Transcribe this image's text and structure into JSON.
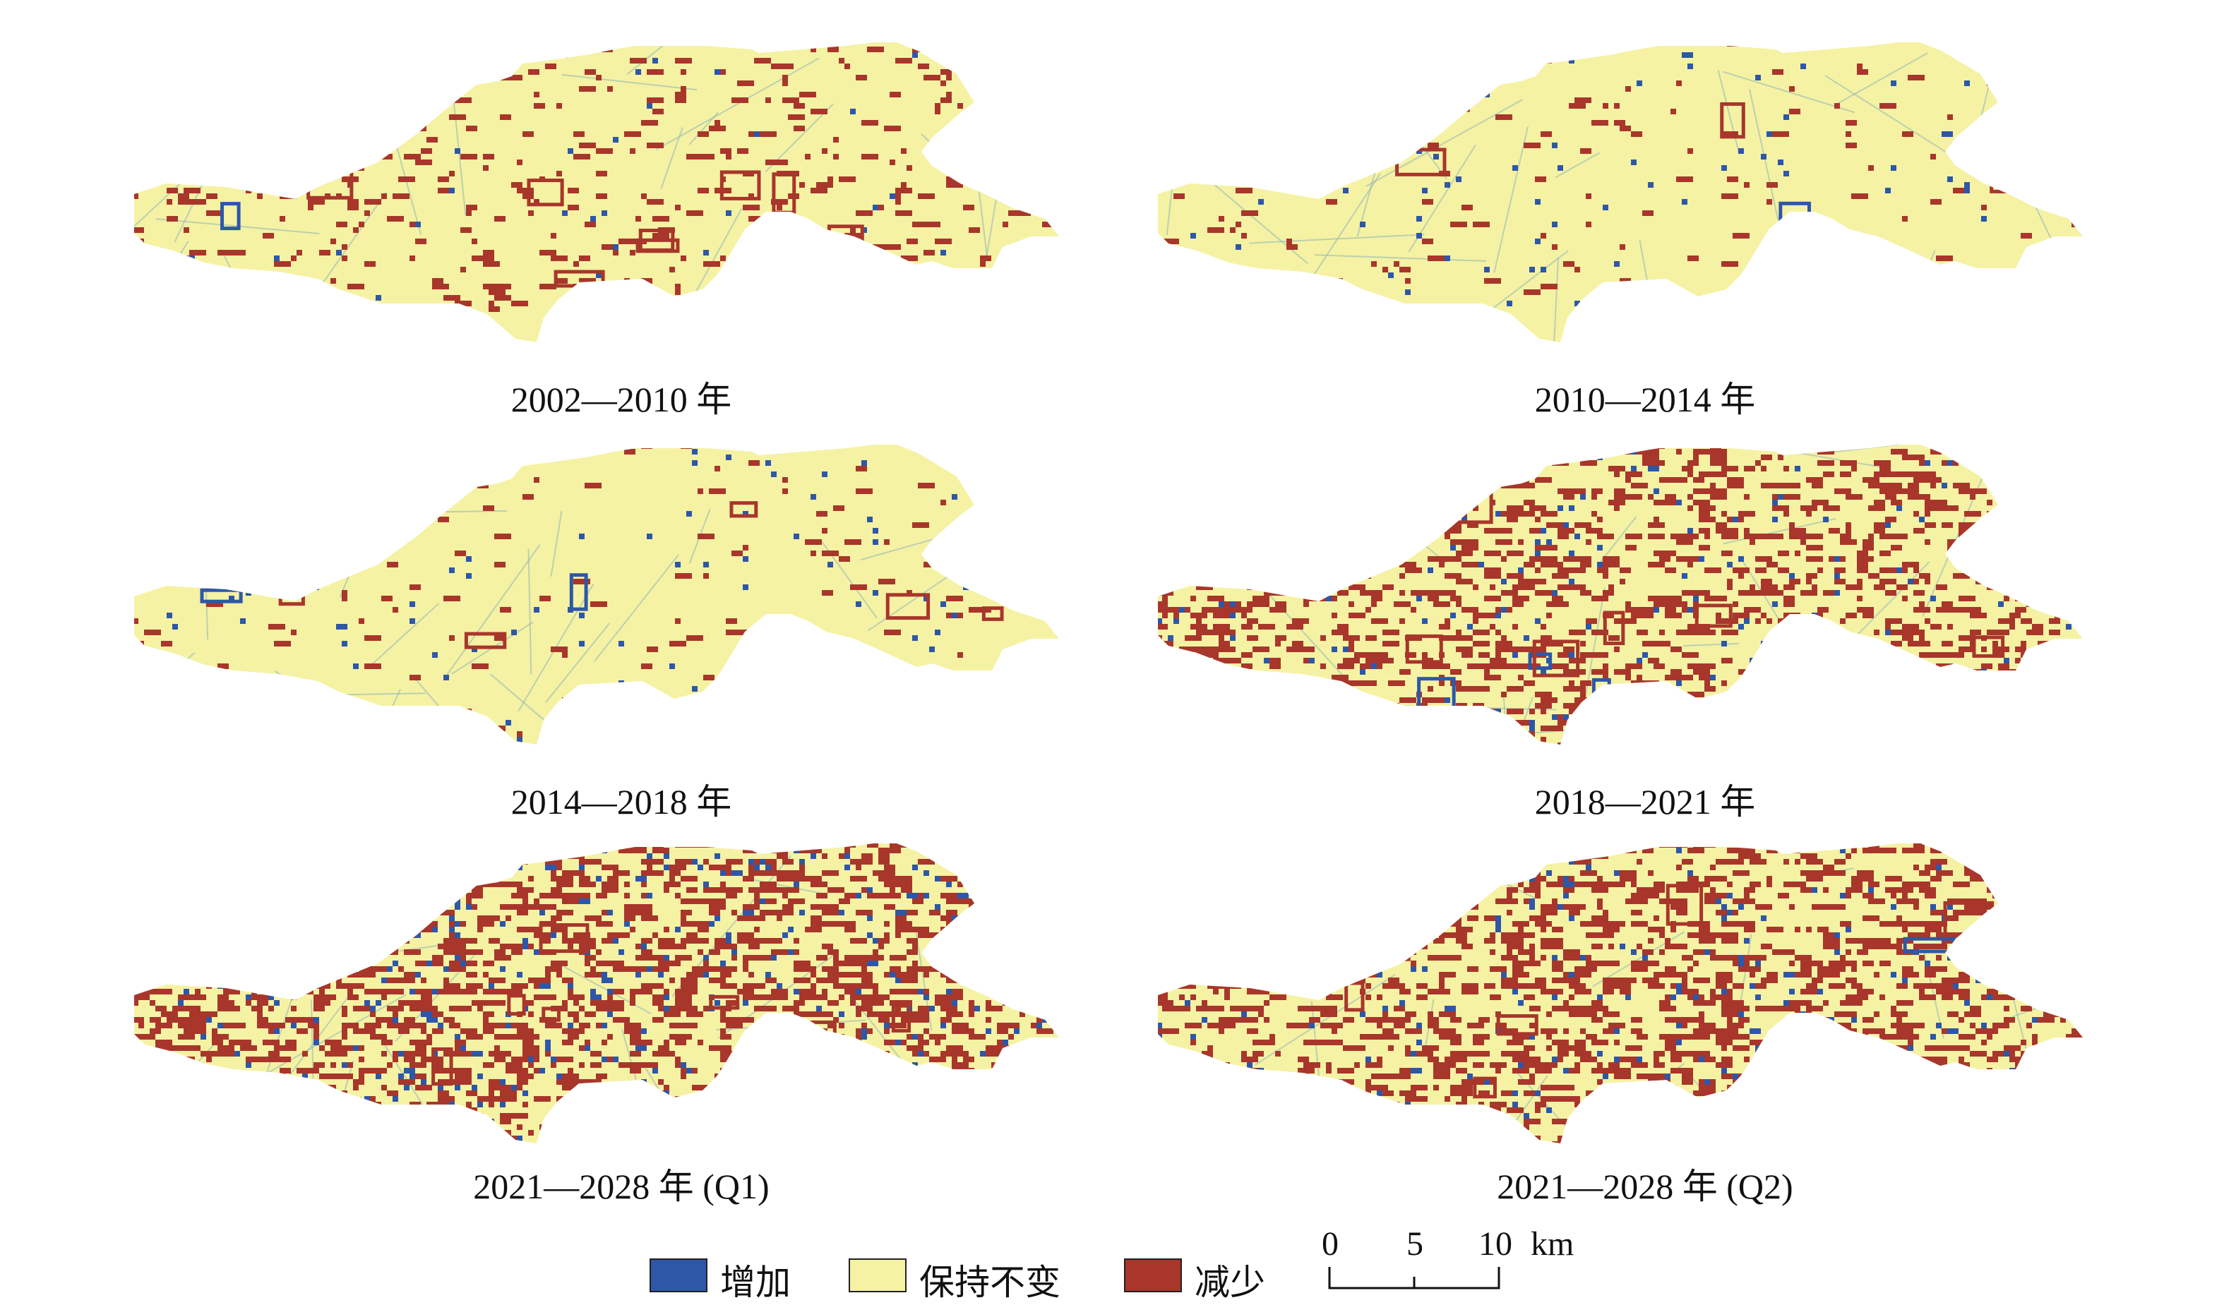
{
  "panels": [
    {
      "caption": "2002—2010 年",
      "style": {
        "red": 0.055,
        "blue": 0.006
      }
    },
    {
      "caption": "2010—2014 年",
      "style": {
        "red": 0.02,
        "blue": 0.012
      }
    },
    {
      "caption": "2014—2018 年",
      "style": {
        "red": 0.018,
        "blue": 0.01
      }
    },
    {
      "caption": "2018—2021 年",
      "style": {
        "red": 0.16,
        "blue": 0.02
      }
    },
    {
      "caption": "2021—2028 年 (Q1)",
      "style": {
        "red": 0.22,
        "blue": 0.05
      }
    },
    {
      "caption": "2021—2028 年 (Q2)",
      "style": {
        "red": 0.2,
        "blue": 0.03
      }
    }
  ],
  "legend": {
    "items": [
      {
        "label": "增加",
        "color": "#2e57a8"
      },
      {
        "label": "保持不变",
        "color": "#f5f2a4"
      },
      {
        "label": "减少",
        "color": "#a8362b"
      }
    ]
  },
  "scale": {
    "ticks": [
      "0",
      "5",
      "10"
    ],
    "unit": "km"
  },
  "colors": {
    "unchanged": "#f5f2a4",
    "increase": "#2e57a8",
    "decrease": "#a8362b",
    "road": "#8fb5b5"
  }
}
